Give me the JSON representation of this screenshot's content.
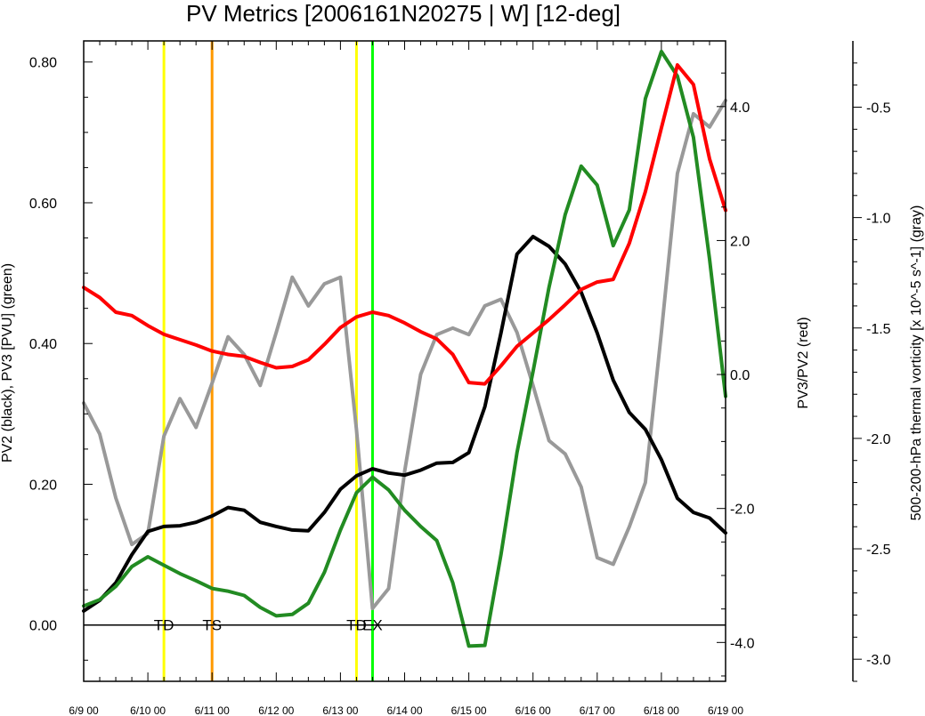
{
  "chart_data": {
    "type": "line",
    "title": "PV Metrics [2006161N20275 | W] [12-deg]",
    "left_axis": {
      "label": "PV2 (black), PV3 [PVU] (green)",
      "ylim": [
        -0.08,
        0.83
      ],
      "ticks": [
        0.0,
        0.2,
        0.4,
        0.6,
        0.8
      ],
      "tick_labels": [
        "0.00",
        "0.20",
        "0.40",
        "0.60",
        "0.80"
      ]
    },
    "right_axis_1": {
      "label": "PV3/PV2 (red)",
      "ylim": [
        -4.58,
        4.98
      ],
      "ticks": [
        -4.0,
        -2.0,
        0.0,
        2.0,
        4.0
      ],
      "tick_labels": [
        "-4.0",
        "-2.0",
        "0.0",
        "2.0",
        "4.0"
      ]
    },
    "right_axis_2": {
      "label": "500-200-hPa thermal vorticity [x 10^-5 s^-1] (gray)",
      "ylim": [
        -3.1,
        -0.2
      ],
      "ticks": [
        -3.0,
        -2.5,
        -2.0,
        -1.5,
        -1.0,
        -0.5
      ],
      "tick_labels": [
        "-3.0",
        "-2.5",
        "-2.0",
        "-1.5",
        "-1.0",
        "-0.5"
      ]
    },
    "x_axis": {
      "xlim": [
        0,
        10
      ],
      "ticks": [
        0,
        1,
        2,
        3,
        4,
        5,
        6,
        7,
        8,
        9,
        10
      ],
      "tick_labels": [
        "6/9 00",
        "6/10 00",
        "6/11 00",
        "6/12 00",
        "6/13 00",
        "6/14 00",
        "6/15 00",
        "6/16 00",
        "6/17 00",
        "6/18 00",
        "6/19 00"
      ]
    },
    "series": [
      {
        "color": "#000000",
        "axis": "left",
        "x": [
          0,
          0.25,
          0.5,
          0.75,
          1.0,
          1.25,
          1.5,
          1.75,
          2.0,
          2.25,
          2.5,
          2.75,
          3.0,
          3.25,
          3.5,
          3.75,
          4.0,
          4.25,
          4.5,
          4.75,
          5.0,
          5.25,
          5.5,
          5.75,
          6.0,
          6.25,
          6.5,
          6.75,
          7.0,
          7.25,
          7.5,
          7.75,
          8.0,
          8.25,
          8.5,
          8.75,
          9.0,
          9.25,
          9.5,
          9.75,
          10.0
        ],
        "values": [
          0.02,
          0.035,
          0.06,
          0.1,
          0.133,
          0.14,
          0.141,
          0.146,
          0.155,
          0.167,
          0.163,
          0.146,
          0.14,
          0.135,
          0.134,
          0.16,
          0.193,
          0.212,
          0.222,
          0.216,
          0.213,
          0.22,
          0.23,
          0.231,
          0.245,
          0.31,
          0.415,
          0.527,
          0.552,
          0.538,
          0.513,
          0.473,
          0.415,
          0.348,
          0.302,
          0.278,
          0.235,
          0.18,
          0.16,
          0.152,
          0.131
        ]
      },
      {
        "color": "#228b22",
        "axis": "left",
        "x": [
          0,
          0.25,
          0.5,
          0.75,
          1.0,
          1.25,
          1.5,
          1.75,
          2.0,
          2.25,
          2.5,
          2.75,
          3.0,
          3.25,
          3.5,
          3.75,
          4.0,
          4.25,
          4.5,
          4.75,
          5.0,
          5.25,
          5.5,
          5.75,
          6.0,
          6.25,
          6.5,
          6.75,
          7.0,
          7.25,
          7.5,
          7.75,
          8.0,
          8.25,
          8.5,
          8.75,
          9.0,
          9.25,
          9.5,
          9.75,
          10.0
        ],
        "values": [
          0.027,
          0.036,
          0.055,
          0.083,
          0.097,
          0.085,
          0.073,
          0.063,
          0.052,
          0.048,
          0.042,
          0.025,
          0.013,
          0.015,
          0.031,
          0.075,
          0.135,
          0.188,
          0.21,
          0.192,
          0.163,
          0.14,
          0.12,
          0.06,
          -0.03,
          -0.029,
          0.1,
          0.245,
          0.36,
          0.48,
          0.583,
          0.652,
          0.625,
          0.539,
          0.59,
          0.748,
          0.815,
          0.78,
          0.693,
          0.52,
          0.325
        ]
      },
      {
        "color": "#ff0000",
        "axis": "right1",
        "x": [
          0,
          0.25,
          0.5,
          0.75,
          1.0,
          1.25,
          1.5,
          1.75,
          2.0,
          2.25,
          2.5,
          2.75,
          3.0,
          3.25,
          3.5,
          3.75,
          4.0,
          4.25,
          4.5,
          4.75,
          5.0,
          5.25,
          5.5,
          5.75,
          6.0,
          6.25,
          6.5,
          6.75,
          7.0,
          7.25,
          7.5,
          7.75,
          8.0,
          8.25,
          8.5,
          8.75,
          9.0,
          9.25,
          9.5,
          9.75,
          10.0
        ],
        "values": [
          1.3,
          1.15,
          0.93,
          0.88,
          0.73,
          0.6,
          0.52,
          0.44,
          0.35,
          0.3,
          0.27,
          0.18,
          0.1,
          0.12,
          0.22,
          0.45,
          0.7,
          0.86,
          0.93,
          0.88,
          0.77,
          0.64,
          0.53,
          0.3,
          -0.12,
          -0.14,
          0.13,
          0.42,
          0.62,
          0.82,
          1.04,
          1.27,
          1.38,
          1.42,
          1.96,
          2.73,
          3.68,
          4.62,
          4.33,
          3.22,
          2.45
        ]
      },
      {
        "color": "#999999",
        "axis": "right2",
        "x": [
          0,
          0.25,
          0.5,
          0.75,
          1.0,
          1.25,
          1.5,
          1.75,
          2.0,
          2.25,
          2.5,
          2.75,
          3.0,
          3.25,
          3.5,
          3.75,
          4.0,
          4.25,
          4.5,
          4.75,
          5.0,
          5.25,
          5.5,
          5.75,
          6.0,
          6.25,
          6.5,
          6.75,
          7.0,
          7.25,
          7.5,
          7.75,
          8.0,
          8.25,
          8.5,
          8.75,
          9.0,
          9.25,
          9.5,
          9.75,
          10.0
        ],
        "values": [
          -1.84,
          -1.98,
          -2.27,
          -2.48,
          -2.43,
          -1.99,
          -1.82,
          -1.95,
          -1.75,
          -1.54,
          -1.62,
          -1.76,
          -1.52,
          -1.27,
          -1.4,
          -1.3,
          -1.27,
          -1.96,
          -2.77,
          -2.68,
          -2.15,
          -1.71,
          -1.53,
          -1.5,
          -1.53,
          -1.4,
          -1.37,
          -1.52,
          -1.76,
          -2.01,
          -2.07,
          -2.22,
          -2.54,
          -2.57,
          -2.4,
          -2.2,
          -1.52,
          -0.8,
          -0.53,
          -0.59,
          -0.47
        ]
      }
    ],
    "event_lines": [
      {
        "label": "TD",
        "x": 1.25,
        "color": "#ffff00"
      },
      {
        "label": "TS",
        "x": 2.0,
        "color": "#ff9900"
      },
      {
        "label": "TD",
        "x": 4.25,
        "color": "#ffff00"
      },
      {
        "label": "EX",
        "x": 4.5,
        "color": "#00ff00"
      }
    ],
    "grid": false,
    "legend": "none"
  }
}
